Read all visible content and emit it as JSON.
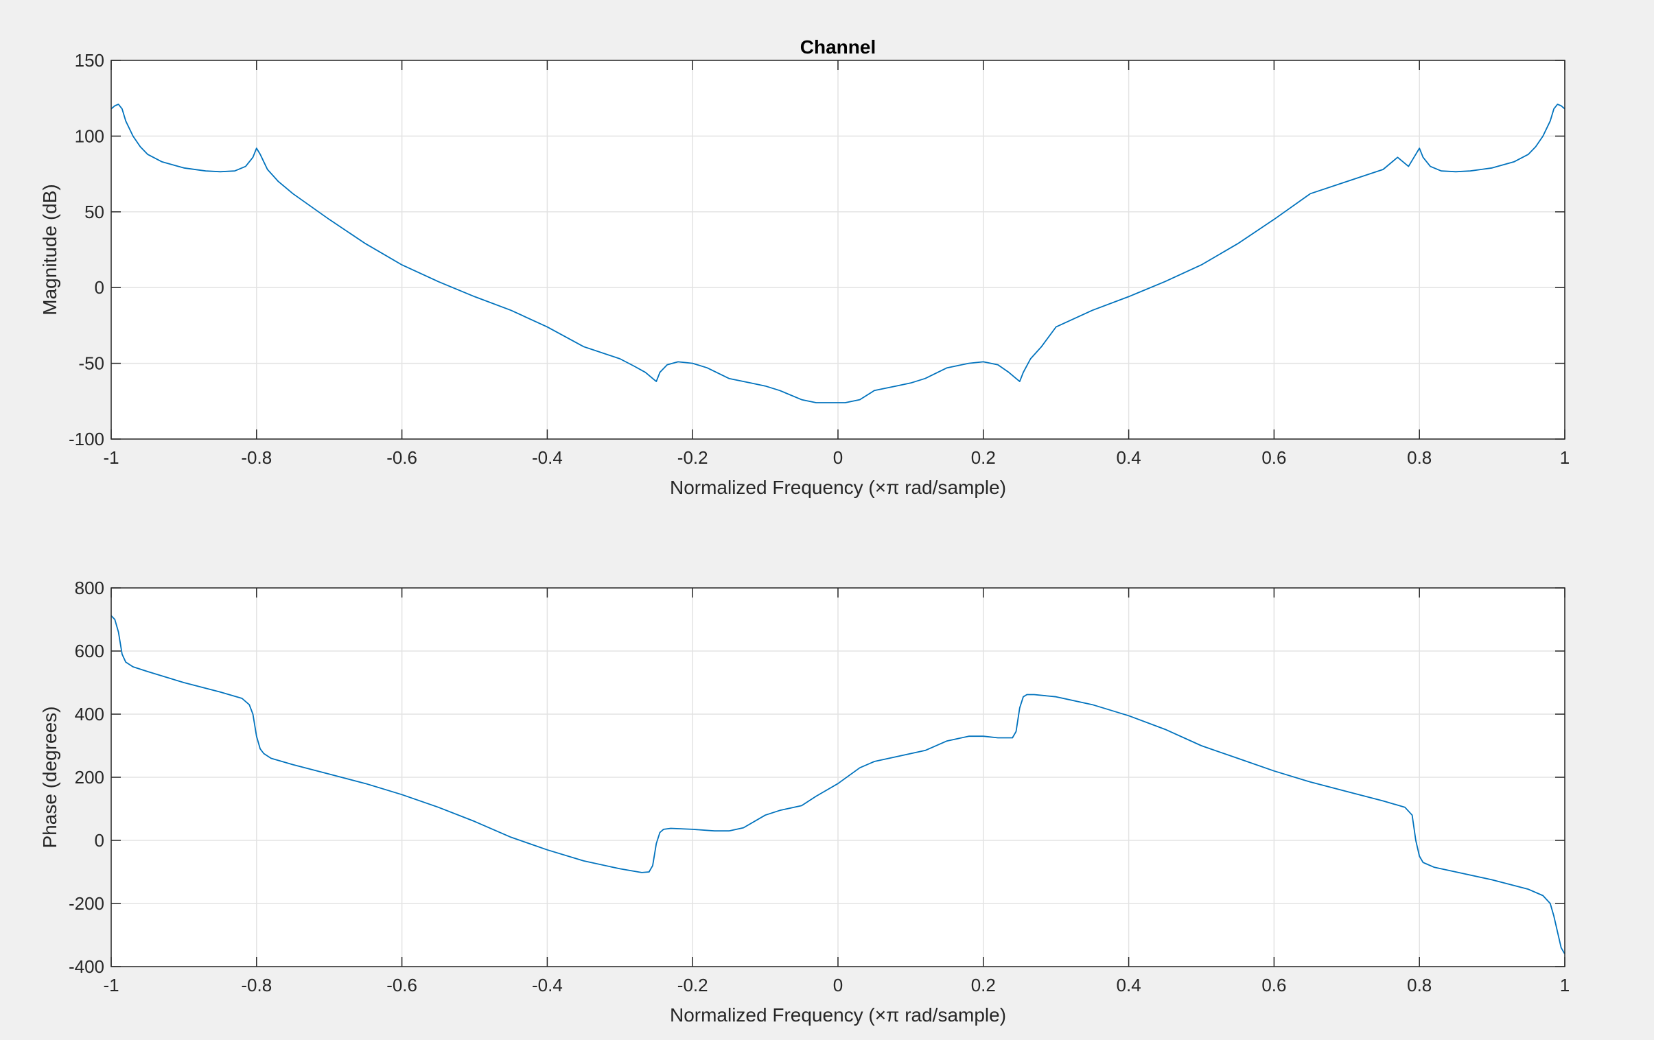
{
  "figure": {
    "background": "#f0f0f0",
    "axes_background": "#ffffff",
    "line_color": "#0072bd",
    "grid_color": "#e3e3e3",
    "axes_color": "#262626"
  },
  "chart_data": [
    {
      "type": "line",
      "title": "Channel",
      "xlabel": "Normalized Frequency  (×π rad/sample)",
      "ylabel": "Magnitude (dB)",
      "xlim": [
        -1,
        1
      ],
      "ylim": [
        -100,
        150
      ],
      "xticks": [
        -1,
        -0.8,
        -0.6,
        -0.4,
        -0.2,
        0,
        0.2,
        0.4,
        0.6,
        0.8,
        1
      ],
      "xtick_labels": [
        "-1",
        "-0.8",
        "-0.6",
        "-0.4",
        "-0.2",
        "0",
        "0.2",
        "0.4",
        "0.6",
        "0.8",
        "1"
      ],
      "yticks": [
        -100,
        -50,
        0,
        50,
        100,
        150
      ],
      "ytick_labels": [
        "-100",
        "-50",
        "0",
        "50",
        "100",
        "150"
      ],
      "grid": true,
      "series": [
        {
          "x": [
            -1,
            -0.995,
            -0.99,
            -0.985,
            -0.98,
            -0.97,
            -0.96,
            -0.95,
            -0.93,
            -0.9,
            -0.87,
            -0.85,
            -0.83,
            -0.815,
            -0.805,
            -0.8,
            -0.795,
            -0.785,
            -0.77,
            -0.75,
            -0.7,
            -0.65,
            -0.6,
            -0.55,
            -0.5,
            -0.45,
            -0.4,
            -0.35,
            -0.3,
            -0.28,
            -0.265,
            -0.255,
            -0.25,
            -0.245,
            -0.235,
            -0.22,
            -0.2,
            -0.18,
            -0.15,
            -0.12,
            -0.1,
            -0.08,
            -0.05,
            -0.03,
            -0.01,
            0,
            0.01,
            0.03,
            0.05,
            0.08,
            0.1,
            0.12,
            0.15,
            0.18,
            0.2,
            0.22,
            0.235,
            0.245,
            0.25,
            0.255,
            0.265,
            0.28,
            0.3,
            0.35,
            0.4,
            0.45,
            0.5,
            0.55,
            0.6,
            0.65,
            0.7,
            0.75,
            0.77,
            0.785,
            0.795,
            0.8,
            0.805,
            0.815,
            0.83,
            0.85,
            0.87,
            0.9,
            0.93,
            0.95,
            0.96,
            0.97,
            0.98,
            0.985,
            0.99,
            0.995,
            1
          ],
          "y": [
            118,
            120,
            121,
            118,
            110,
            100,
            93,
            88,
            83,
            79,
            77,
            76.5,
            77,
            80,
            86,
            92,
            88,
            78,
            70,
            62,
            45,
            29,
            15,
            4,
            -6,
            -15,
            -26,
            -39,
            -47,
            -52,
            -56,
            -60,
            -62,
            -56,
            -51,
            -49,
            -50,
            -53,
            -60,
            -63,
            -65,
            -68,
            -74,
            -76,
            -76,
            -76,
            -76,
            -74,
            -68,
            -65,
            -63,
            -60,
            -53,
            -50,
            -49,
            -51,
            -56,
            -60,
            -62,
            -56,
            -47,
            -39,
            -26,
            -15,
            -6,
            4,
            15,
            29,
            45,
            62,
            70,
            78,
            86,
            80,
            88,
            92,
            86,
            80,
            77,
            76.5,
            77,
            79,
            83,
            88,
            93,
            100,
            110,
            118,
            121,
            120,
            118
          ]
        }
      ]
    },
    {
      "type": "line",
      "title": "",
      "xlabel": "Normalized Frequency  (×π rad/sample)",
      "ylabel": "Phase (degrees)",
      "xlim": [
        -1,
        1
      ],
      "ylim": [
        -400,
        800
      ],
      "xticks": [
        -1,
        -0.8,
        -0.6,
        -0.4,
        -0.2,
        0,
        0.2,
        0.4,
        0.6,
        0.8,
        1
      ],
      "xtick_labels": [
        "-1",
        "-0.8",
        "-0.6",
        "-0.4",
        "-0.2",
        "0",
        "0.2",
        "0.4",
        "0.6",
        "0.8",
        "1"
      ],
      "yticks": [
        -400,
        -200,
        0,
        200,
        400,
        600,
        800
      ],
      "ytick_labels": [
        "-400",
        "-200",
        "0",
        "200",
        "400",
        "600",
        "800"
      ],
      "grid": true,
      "series": [
        {
          "x": [
            -1,
            -0.995,
            -0.99,
            -0.985,
            -0.98,
            -0.97,
            -0.95,
            -0.9,
            -0.85,
            -0.82,
            -0.81,
            -0.805,
            -0.8,
            -0.795,
            -0.79,
            -0.78,
            -0.75,
            -0.7,
            -0.65,
            -0.6,
            -0.55,
            -0.5,
            -0.45,
            -0.4,
            -0.35,
            -0.3,
            -0.27,
            -0.26,
            -0.255,
            -0.25,
            -0.245,
            -0.24,
            -0.23,
            -0.2,
            -0.17,
            -0.15,
            -0.13,
            -0.1,
            -0.08,
            -0.05,
            -0.03,
            0,
            0.03,
            0.05,
            0.08,
            0.1,
            0.12,
            0.15,
            0.18,
            0.2,
            0.22,
            0.24,
            0.245,
            0.25,
            0.255,
            0.26,
            0.27,
            0.3,
            0.35,
            0.4,
            0.45,
            0.5,
            0.55,
            0.6,
            0.65,
            0.7,
            0.75,
            0.78,
            0.79,
            0.795,
            0.8,
            0.805,
            0.81,
            0.82,
            0.85,
            0.9,
            0.95,
            0.97,
            0.98,
            0.985,
            0.99,
            0.995,
            1
          ],
          "y": [
            712,
            700,
            660,
            590,
            565,
            550,
            535,
            500,
            470,
            450,
            430,
            400,
            330,
            290,
            275,
            260,
            240,
            210,
            180,
            145,
            105,
            60,
            10,
            -30,
            -65,
            -90,
            -102,
            -100,
            -80,
            -10,
            25,
            35,
            38,
            35,
            30,
            30,
            40,
            80,
            95,
            110,
            140,
            180,
            230,
            250,
            265,
            275,
            285,
            315,
            330,
            330,
            325,
            325,
            345,
            420,
            455,
            462,
            462,
            455,
            430,
            395,
            352,
            300,
            260,
            220,
            185,
            155,
            125,
            105,
            80,
            0,
            -50,
            -70,
            -75,
            -85,
            -100,
            -125,
            -155,
            -175,
            -200,
            -240,
            -290,
            -340,
            -360
          ]
        }
      ]
    }
  ]
}
